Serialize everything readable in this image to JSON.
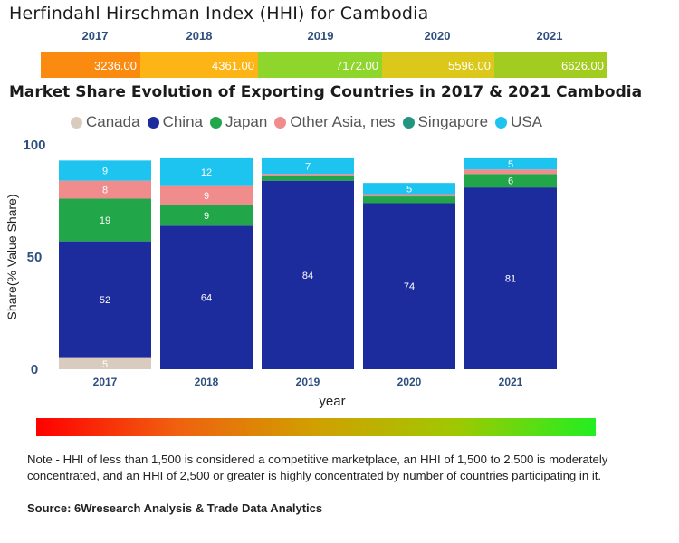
{
  "hhi": {
    "title": "Herfindahl Hirschman Index (HHI) for Cambodia",
    "years": [
      "2017",
      "2018",
      "2019",
      "2020",
      "2021"
    ],
    "values": [
      "3236.00",
      "4361.00",
      "7172.00",
      "5596.00",
      "6626.00"
    ],
    "colors": [
      "#fb8a10",
      "#fdb515",
      "#8fd62c",
      "#dcc81a",
      "#a3cc20"
    ]
  },
  "chart_data": {
    "type": "bar",
    "stacked": true,
    "title": "Market Share Evolution of Exporting Countries in 2017 & 2021 Cambodia",
    "xlabel": "year",
    "ylabel": "Share(% Value Share)",
    "ylim": [
      0,
      100
    ],
    "yticks": [
      "0",
      "50",
      "100"
    ],
    "categories": [
      "2017",
      "2018",
      "2019",
      "2020",
      "2021"
    ],
    "series": [
      {
        "name": "Canada",
        "color": "#d9cbbd",
        "values": [
          5,
          0,
          0,
          0,
          0
        ],
        "labels": [
          "5",
          "",
          "",
          "",
          ""
        ]
      },
      {
        "name": "China",
        "color": "#1c2c9c",
        "values": [
          52,
          64,
          84,
          74,
          81
        ],
        "labels": [
          "52",
          "64",
          "84",
          "74",
          "81"
        ]
      },
      {
        "name": "Japan",
        "color": "#22a64a",
        "values": [
          19,
          9,
          2,
          3,
          6
        ],
        "labels": [
          "19",
          "9",
          "",
          "",
          "6"
        ]
      },
      {
        "name": "Other Asia, nes",
        "color": "#f08c8c",
        "values": [
          8,
          9,
          1,
          1,
          2
        ],
        "labels": [
          "8",
          "9",
          "",
          "",
          ""
        ]
      },
      {
        "name": "Singapore",
        "color": "#23957f",
        "values": [
          0,
          0,
          0,
          0,
          0
        ],
        "labels": [
          "",
          "",
          "",
          "",
          ""
        ]
      },
      {
        "name": "USA",
        "color": "#1ec4f0",
        "values": [
          9,
          12,
          7,
          5,
          5
        ],
        "labels": [
          "9",
          "12",
          "7",
          "5",
          "5"
        ]
      }
    ]
  },
  "footer": {
    "note": "Note - HHI of less than 1,500 is considered a competitive marketplace, an HHI of 1,500 to 2,500 is moderately concentrated, and an HHI of 2,500 or greater is highly concentrated by number of countries participating in it.",
    "source": "Source: 6Wresearch Analysis & Trade Data Analytics"
  }
}
